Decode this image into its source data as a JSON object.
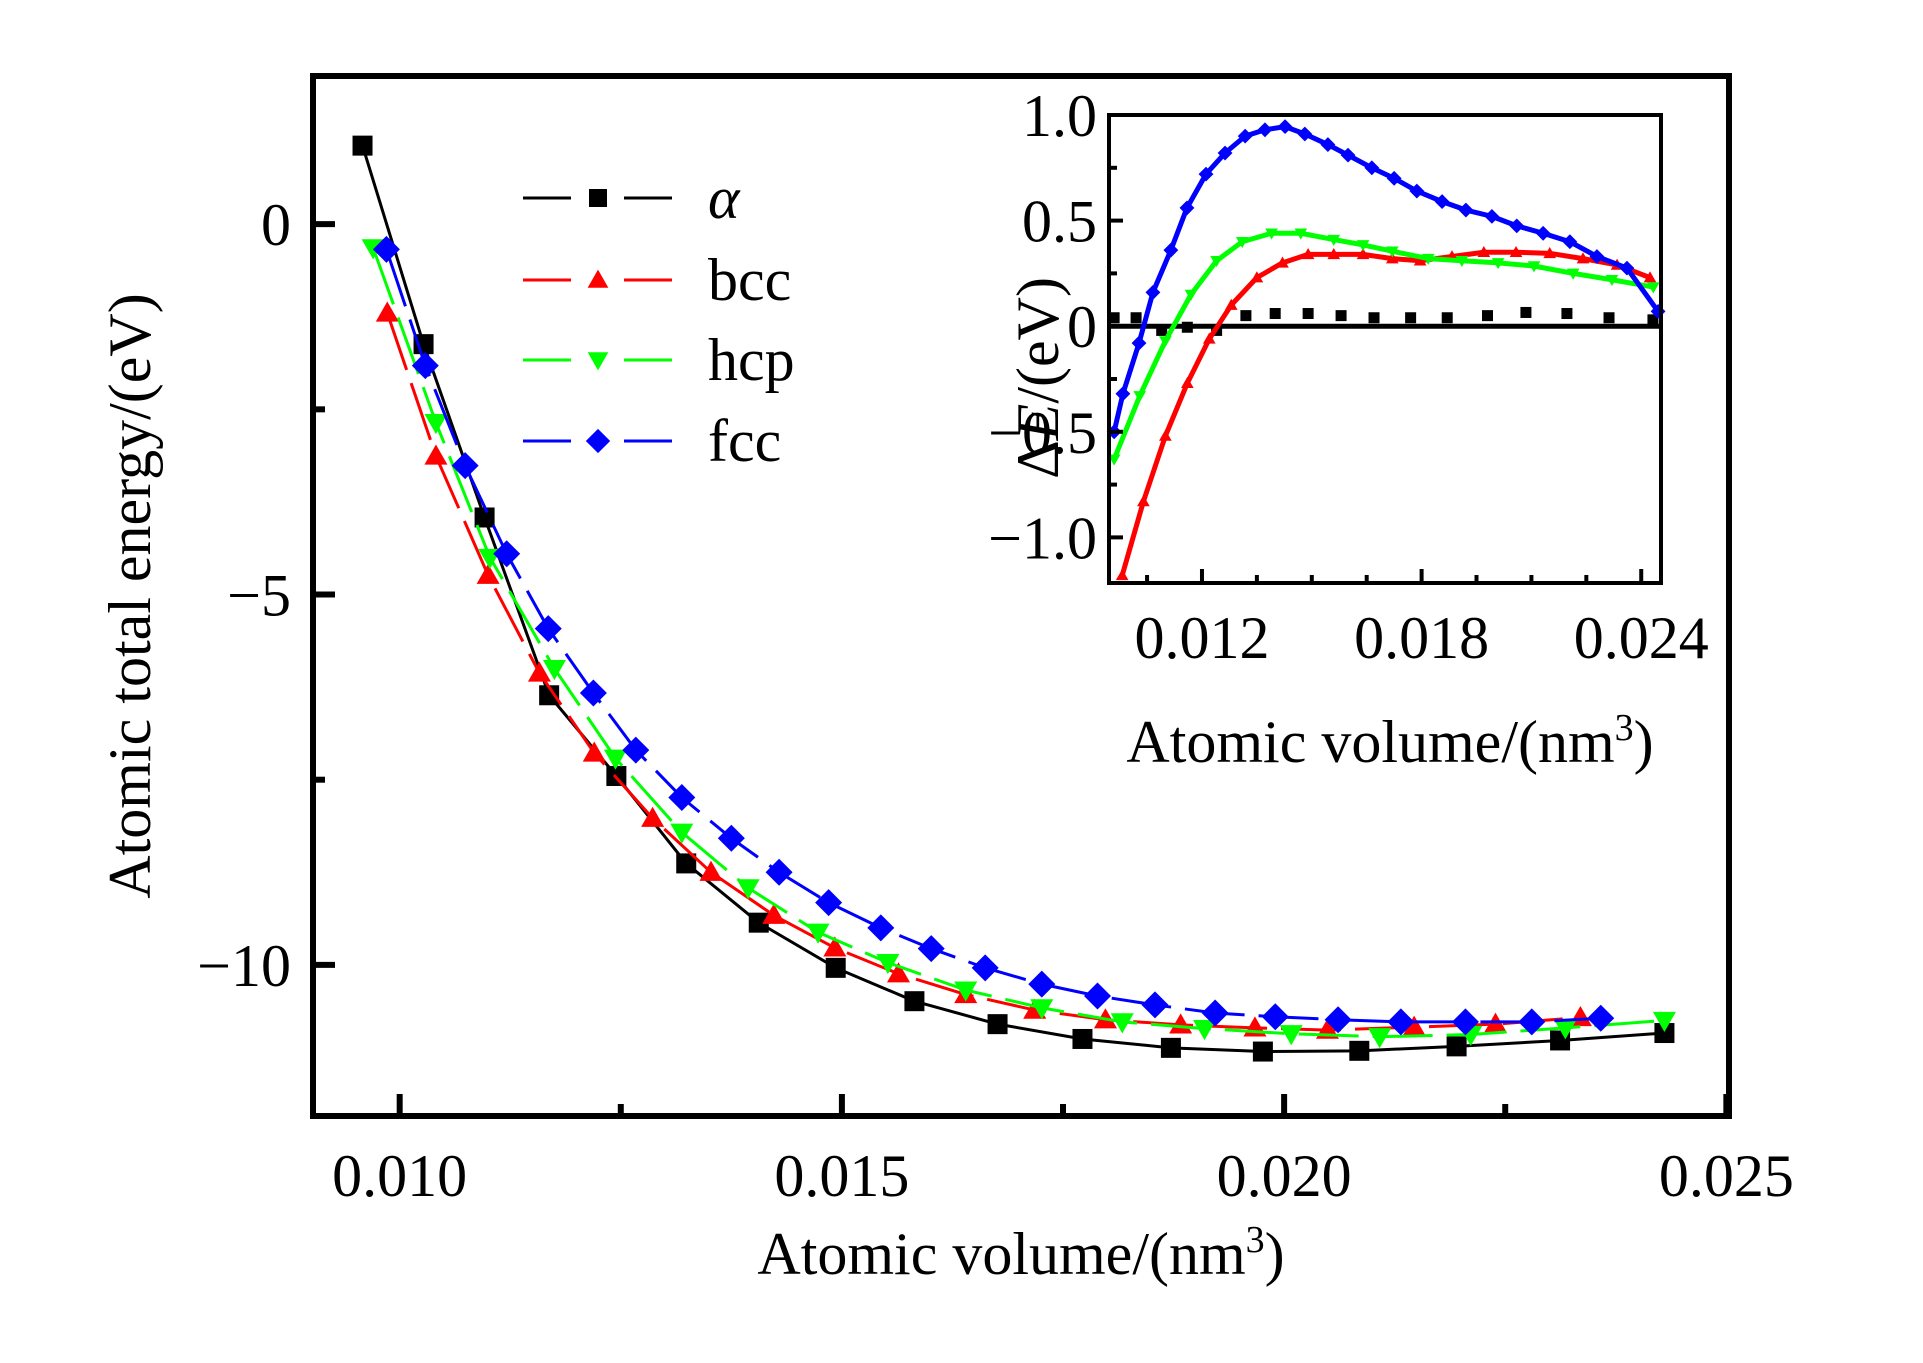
{
  "chart_data": [
    {
      "id": "main",
      "type": "line",
      "title": "",
      "xlabel": "Atomic volume/(nm",
      "xlabel_sup": "3",
      "xlabel_close": ")",
      "ylabel": "Atomic total energy/(eV)",
      "xlim": [
        0.00902,
        0.02503
      ],
      "ylim": [
        -12.04,
        2.0
      ],
      "xticks": [
        {
          "value": 0.01,
          "label": "0.010"
        },
        {
          "value": 0.015,
          "label": "0.015"
        },
        {
          "value": 0.02,
          "label": "0.020"
        },
        {
          "value": 0.025,
          "label": "0.025"
        }
      ],
      "xminor": [
        0.0125,
        0.0175,
        0.0225
      ],
      "yticks": [
        {
          "value": 0,
          "label": "0"
        },
        {
          "value": -5,
          "label": "−5"
        },
        {
          "value": -10,
          "label": "−10"
        }
      ],
      "yminor": [
        -2.5,
        -7.5
      ],
      "grid": false,
      "legend": {
        "position": "top-left",
        "entries": [
          {
            "series": "alpha",
            "label": "α",
            "italic": true
          },
          {
            "series": "bcc",
            "label": "bcc",
            "italic": false
          },
          {
            "series": "hcp",
            "label": "hcp",
            "italic": false
          },
          {
            "series": "fcc",
            "label": "fcc",
            "italic": false
          }
        ]
      },
      "series": [
        {
          "key": "alpha",
          "name": "α",
          "color": "#000000",
          "marker": "square",
          "x": [
            0.00958,
            0.01027,
            0.01096,
            0.01169,
            0.01245,
            0.01324,
            0.01406,
            0.01493,
            0.01582,
            0.01676,
            0.01772,
            0.01872,
            0.01976,
            0.02085,
            0.02195,
            0.02312,
            0.0243
          ],
          "y": [
            1.06,
            -1.62,
            -3.96,
            -6.36,
            -7.45,
            -8.63,
            -9.43,
            -10.04,
            -10.49,
            -10.8,
            -11.0,
            -11.12,
            -11.17,
            -11.16,
            -11.1,
            -11.02,
            -10.92
          ]
        },
        {
          "key": "bcc",
          "name": "bcc",
          "color": "#ff0000",
          "marker": "triangle-up",
          "x": [
            0.00986,
            0.01041,
            0.011,
            0.01158,
            0.0122,
            0.01286,
            0.01352,
            0.01423,
            0.01492,
            0.01564,
            0.0164,
            0.01718,
            0.01798,
            0.01883,
            0.01967,
            0.02049,
            0.02147,
            0.02239,
            0.02335
          ],
          "y": [
            -1.2,
            -3.13,
            -4.74,
            -6.06,
            -7.14,
            -8.02,
            -8.75,
            -9.33,
            -9.77,
            -10.12,
            -10.4,
            -10.61,
            -10.74,
            -10.81,
            -10.85,
            -10.88,
            -10.84,
            -10.8,
            -10.71
          ]
        },
        {
          "key": "hcp",
          "name": "hcp",
          "color": "#00ff00",
          "marker": "triangle-down",
          "x": [
            0.0097,
            0.01041,
            0.01102,
            0.01175,
            0.01244,
            0.01319,
            0.01394,
            0.01473,
            0.01552,
            0.0164,
            0.01726,
            0.01817,
            0.0191,
            0.02008,
            0.02108,
            0.02211,
            0.02318,
            0.0243
          ],
          "y": [
            -0.32,
            -2.68,
            -4.5,
            -6.0,
            -7.21,
            -8.21,
            -8.96,
            -9.56,
            -9.97,
            -10.34,
            -10.58,
            -10.77,
            -10.86,
            -10.93,
            -10.97,
            -10.94,
            -10.85,
            -10.75
          ]
        },
        {
          "key": "fcc",
          "name": "fcc",
          "color": "#0000ff",
          "marker": "diamond",
          "x": [
            0.00985,
            0.01029,
            0.01074,
            0.01121,
            0.01168,
            0.01219,
            0.01267,
            0.01319,
            0.01375,
            0.01429,
            0.01485,
            0.01544,
            0.01601,
            0.01662,
            0.01726,
            0.01789,
            0.01854,
            0.01922,
            0.0199,
            0.02061,
            0.02132,
            0.02205,
            0.0228,
            0.02358
          ],
          "y": [
            -0.34,
            -1.91,
            -3.26,
            -4.45,
            -5.46,
            -6.33,
            -7.1,
            -7.74,
            -8.29,
            -8.75,
            -9.16,
            -9.5,
            -9.78,
            -10.04,
            -10.26,
            -10.42,
            -10.54,
            -10.65,
            -10.7,
            -10.74,
            -10.77,
            -10.77,
            -10.77,
            -10.72
          ]
        }
      ]
    },
    {
      "id": "inset",
      "type": "line",
      "title": "",
      "xlabel": "Atomic volume/(nm",
      "xlabel_sup": "3",
      "xlabel_close": ")",
      "ylabel_prefix": "Δ",
      "ylabel_var": "E",
      "ylabel_suffix": "/(eV)",
      "xlim": [
        0.00946,
        0.02454
      ],
      "ylim": [
        -1.216,
        1.0
      ],
      "xticks": [
        {
          "value": 0.012,
          "label": "0.012"
        },
        {
          "value": 0.018,
          "label": "0.018"
        },
        {
          "value": 0.024,
          "label": "0.024"
        }
      ],
      "xminor": [
        0.0105,
        0.0135,
        0.015,
        0.0165,
        0.0195,
        0.021,
        0.0225
      ],
      "yticks": [
        {
          "value": 1.0,
          "label": "1.0"
        },
        {
          "value": 0.5,
          "label": "0.5"
        },
        {
          "value": 0,
          "label": "0"
        },
        {
          "value": -0.5,
          "label": "−0.5"
        },
        {
          "value": -1.0,
          "label": "−1.0"
        }
      ],
      "yminor": [
        0.75,
        0.25,
        -0.25,
        -0.75
      ],
      "reference_line_y": 0,
      "grid": false,
      "series": [
        {
          "key": "alpha",
          "color": "#000000",
          "marker": "square",
          "line": false,
          "x": [
            0.0096,
            0.0102,
            0.0109,
            0.0116,
            0.0124,
            0.0132,
            0.014,
            0.0149,
            0.0158,
            0.0167,
            0.0177,
            0.0187,
            0.0198,
            0.02085,
            0.02197,
            0.02312,
            0.02432
          ],
          "y": [
            0.04,
            0.04,
            -0.02,
            -0.005,
            -0.02,
            0.05,
            0.06,
            0.06,
            0.05,
            0.04,
            0.04,
            0.04,
            0.05,
            0.065,
            0.06,
            0.04,
            0.03
          ]
        },
        {
          "key": "bcc",
          "color": "#ff0000",
          "marker": "triangle-up",
          "line": true,
          "x": [
            0.00982,
            0.0104,
            0.011,
            0.0116,
            0.0122,
            0.0128,
            0.0135,
            0.0142,
            0.0149,
            0.0156,
            0.0164,
            0.0172,
            0.01796,
            0.01883,
            0.0197,
            0.02058,
            0.0215,
            0.02241,
            0.02334,
            0.02424
          ],
          "y": [
            -1.18,
            -0.83,
            -0.52,
            -0.27,
            -0.06,
            0.1,
            0.23,
            0.3,
            0.34,
            0.34,
            0.34,
            0.32,
            0.31,
            0.33,
            0.35,
            0.35,
            0.345,
            0.32,
            0.29,
            0.23
          ]
        },
        {
          "key": "hcp",
          "color": "#00ff00",
          "marker": "triangle-down",
          "line": true,
          "x": [
            0.0096,
            0.0103,
            0.011,
            0.0117,
            0.0124,
            0.0131,
            0.0139,
            0.0147,
            0.0156,
            0.0164,
            0.0172,
            0.01818,
            0.0191,
            0.02009,
            0.02107,
            0.02214,
            0.0232,
            0.02433
          ],
          "y": [
            -0.63,
            -0.33,
            -0.07,
            0.15,
            0.31,
            0.4,
            0.44,
            0.44,
            0.41,
            0.385,
            0.355,
            0.32,
            0.31,
            0.3,
            0.285,
            0.25,
            0.22,
            0.185
          ]
        },
        {
          "key": "fcc",
          "color": "#0000ff",
          "marker": "diamond",
          "line": true,
          "x": [
            0.0096,
            0.00984,
            0.01028,
            0.01066,
            0.01115,
            0.01159,
            0.01211,
            0.01263,
            0.01318,
            0.01372,
            0.01427,
            0.01481,
            0.01544,
            0.01599,
            0.01664,
            0.01725,
            0.01787,
            0.01856,
            0.01921,
            0.01992,
            0.0206,
            0.02132,
            0.02205,
            0.02279,
            0.02361,
            0.02446
          ],
          "y": [
            -0.5,
            -0.32,
            -0.08,
            0.16,
            0.36,
            0.56,
            0.72,
            0.82,
            0.9,
            0.93,
            0.945,
            0.91,
            0.86,
            0.81,
            0.75,
            0.7,
            0.64,
            0.59,
            0.55,
            0.52,
            0.475,
            0.44,
            0.4,
            0.33,
            0.275,
            0.07
          ]
        }
      ]
    }
  ]
}
